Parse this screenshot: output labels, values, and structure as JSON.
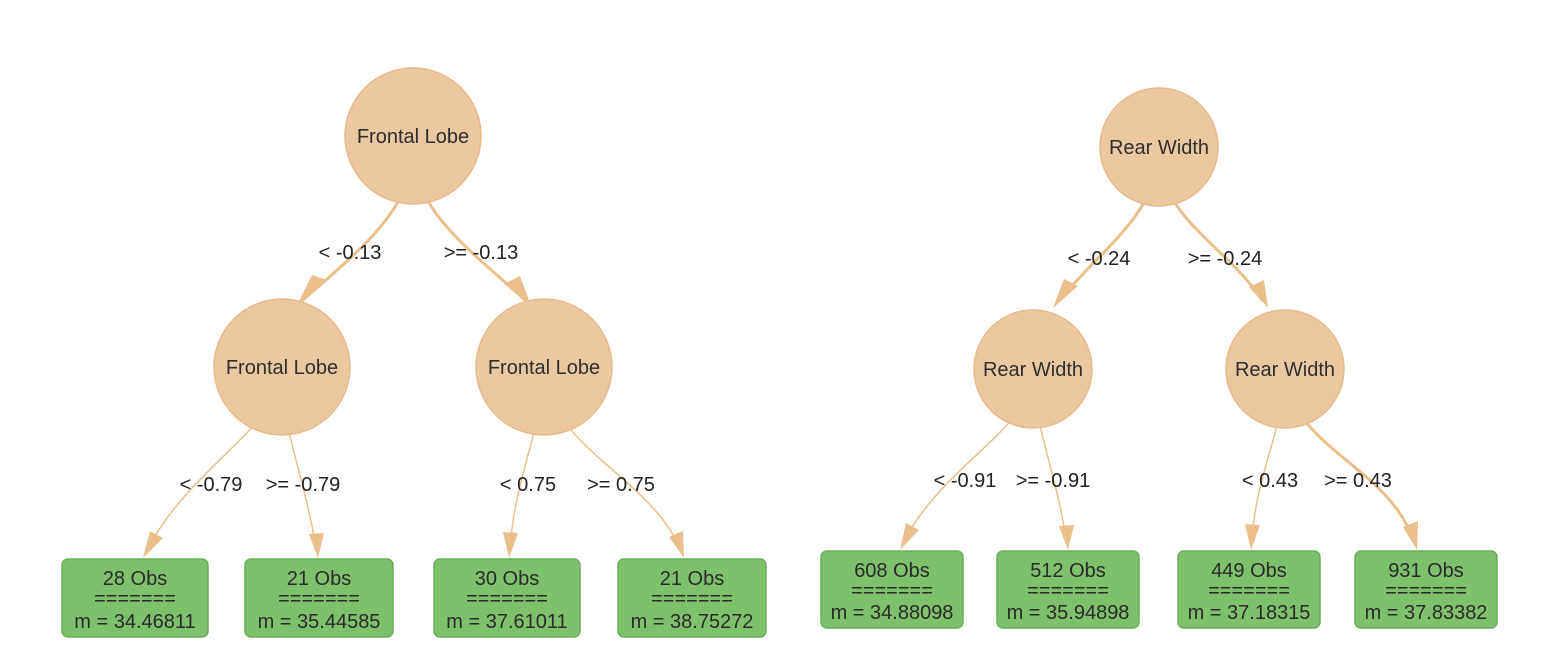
{
  "colors": {
    "node_fill": "#ebc8a0",
    "node_stroke": "#e8b98a",
    "edge": "#eabf8c",
    "leaf_fill": "#7ec16c",
    "leaf_stroke": "#6aad5a"
  },
  "trees": [
    {
      "root": {
        "label": "Frontal Lobe",
        "left_edge": "< -0.13",
        "right_edge": ">= -0.13",
        "children": [
          {
            "label": "Frontal Lobe",
            "left_edge": "< -0.79",
            "right_edge": ">= -0.79",
            "leaves": [
              {
                "obs": "28 Obs",
                "sep": "=======",
                "mean": "m = 34.46811"
              },
              {
                "obs": "21 Obs",
                "sep": "=======",
                "mean": "m = 35.44585"
              }
            ]
          },
          {
            "label": "Frontal Lobe",
            "left_edge": "< 0.75",
            "right_edge": ">= 0.75",
            "leaves": [
              {
                "obs": "30 Obs",
                "sep": "=======",
                "mean": "m = 37.61011"
              },
              {
                "obs": "21 Obs",
                "sep": "=======",
                "mean": "m = 38.75272"
              }
            ]
          }
        ]
      }
    },
    {
      "root": {
        "label": "Rear Width",
        "left_edge": "< -0.24",
        "right_edge": ">= -0.24",
        "children": [
          {
            "label": "Rear Width",
            "left_edge": "< -0.91",
            "right_edge": ">= -0.91",
            "leaves": [
              {
                "obs": "608 Obs",
                "sep": "=======",
                "mean": "m = 34.88098"
              },
              {
                "obs": "512 Obs",
                "sep": "=======",
                "mean": "m = 35.94898"
              }
            ]
          },
          {
            "label": "Rear Width",
            "left_edge": "< 0.43",
            "right_edge": ">= 0.43",
            "leaves": [
              {
                "obs": "449 Obs",
                "sep": "=======",
                "mean": "m = 37.18315"
              },
              {
                "obs": "931 Obs",
                "sep": "=======",
                "mean": "m = 37.83382"
              }
            ]
          }
        ]
      }
    }
  ]
}
